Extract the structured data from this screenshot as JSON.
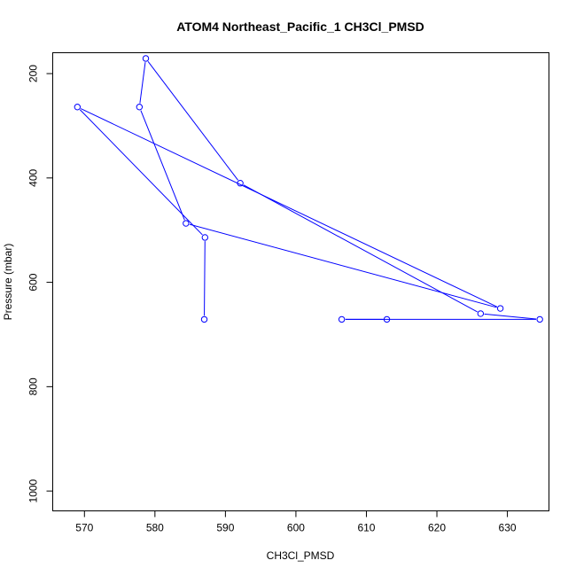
{
  "chart_data": {
    "type": "line",
    "title": "ATOM4 Northeast_Pacific_1 CH3Cl_PMSD",
    "xlabel": "CH3Cl_PMSD",
    "ylabel": "Pressure (mbar)",
    "xlim": [
      565.5,
      635.9
    ],
    "ylim": [
      1038,
      160
    ],
    "y_axis_inverted": true,
    "x_ticks": [
      570,
      580,
      590,
      600,
      610,
      620,
      630
    ],
    "y_ticks": [
      200,
      400,
      600,
      800,
      1000
    ],
    "grid": false,
    "legend": "none",
    "series": [
      {
        "color": "#0000ff",
        "marker": "open-circle",
        "x": [
          612.9,
          606.5,
          634.6,
          626.2,
          592.1,
          578.7,
          577.8,
          584.4,
          629.0,
          569.0,
          587.1,
          587.0
        ],
        "y": [
          671,
          671,
          671,
          660,
          410,
          171,
          264,
          487,
          650,
          264,
          514,
          671
        ]
      }
    ]
  }
}
